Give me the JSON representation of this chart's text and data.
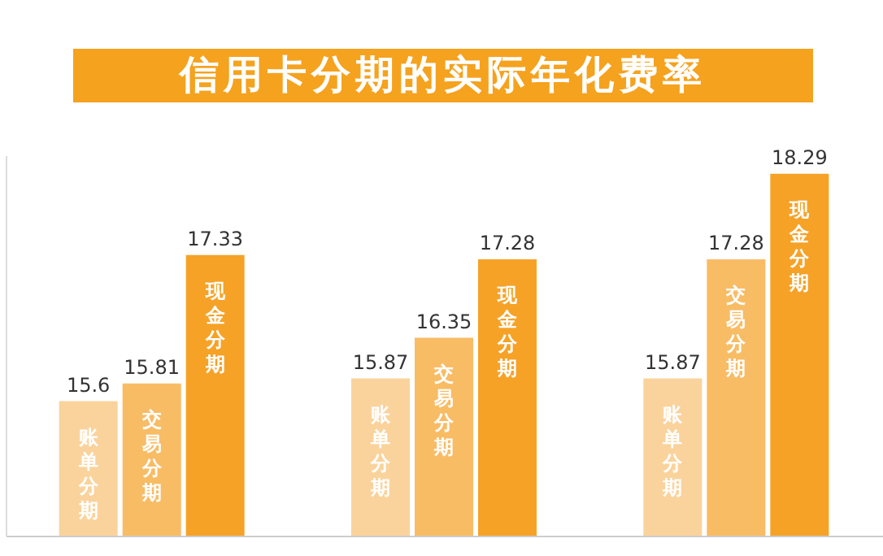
{
  "chart_data": {
    "type": "bar",
    "title": "信用卡分期的实际年化费率",
    "categories": [
      null,
      null,
      null
    ],
    "series": [
      {
        "name": "账单分期",
        "color": "#fad39c",
        "values": [
          15.6,
          15.87,
          15.87
        ]
      },
      {
        "name": "交易分期",
        "color": "#f8bc65",
        "values": [
          15.81,
          16.35,
          17.28
        ]
      },
      {
        "name": "现金分期",
        "color": "#f6a227",
        "values": [
          17.33,
          17.28,
          18.29
        ]
      }
    ],
    "ylim": [
      14,
      18.5
    ],
    "data_labels": true
  }
}
